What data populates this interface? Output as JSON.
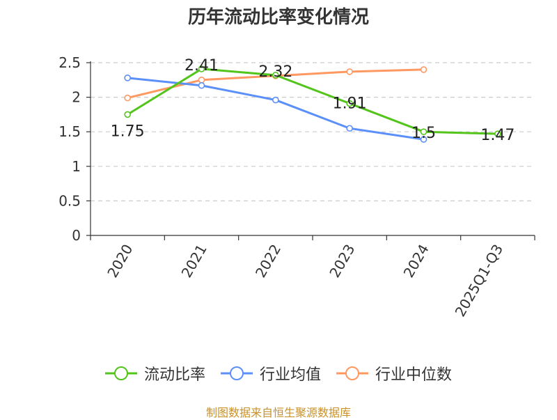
{
  "chart_data": {
    "type": "line",
    "title": "历年流动比率变化情况",
    "categories": [
      "2020",
      "2021",
      "2022",
      "2023",
      "2024",
      "2025Q1-Q3"
    ],
    "ylim": [
      0,
      2.5
    ],
    "yticks": [
      "0",
      "0.5",
      "1",
      "1.5",
      "2",
      "2.5"
    ],
    "grid": true,
    "legend_position": "bottom",
    "series": [
      {
        "name": "流动比率",
        "color": "#52c41a",
        "values": [
          1.75,
          2.41,
          2.32,
          1.91,
          1.5,
          1.47
        ],
        "labels": [
          "1.75",
          "2.41",
          "2.32",
          "1.91",
          "1.5",
          "1.47"
        ]
      },
      {
        "name": "行业均值",
        "color": "#5b8ff9",
        "values": [
          2.28,
          2.17,
          1.96,
          1.55,
          1.39,
          null
        ]
      },
      {
        "name": "行业中位数",
        "color": "#ff9861",
        "values": [
          1.99,
          2.25,
          2.31,
          2.37,
          2.4,
          null
        ]
      }
    ]
  },
  "source": "制图数据来自恒生聚源数据库"
}
